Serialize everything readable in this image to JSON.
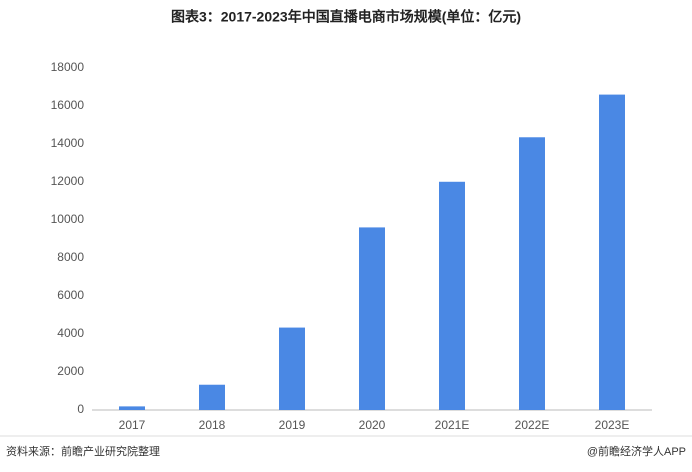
{
  "chart_data": {
    "type": "bar",
    "title": "图表3：2017-2023年中国直播电商市场规模(单位：亿元)",
    "categories": [
      "2017",
      "2018",
      "2019",
      "2020",
      "2021E",
      "2022E",
      "2023E"
    ],
    "values": [
      190,
      1330,
      4338,
      9610,
      12012,
      14354,
      16600
    ],
    "color": "#4a88e4",
    "ylim": [
      0,
      18000
    ],
    "yticks": [
      0,
      2000,
      4000,
      6000,
      8000,
      10000,
      12000,
      14000,
      16000,
      18000
    ],
    "grid": false,
    "source": "资料来源：前瞻产业研究院整理",
    "credit": "@前瞻经济学人APP"
  }
}
